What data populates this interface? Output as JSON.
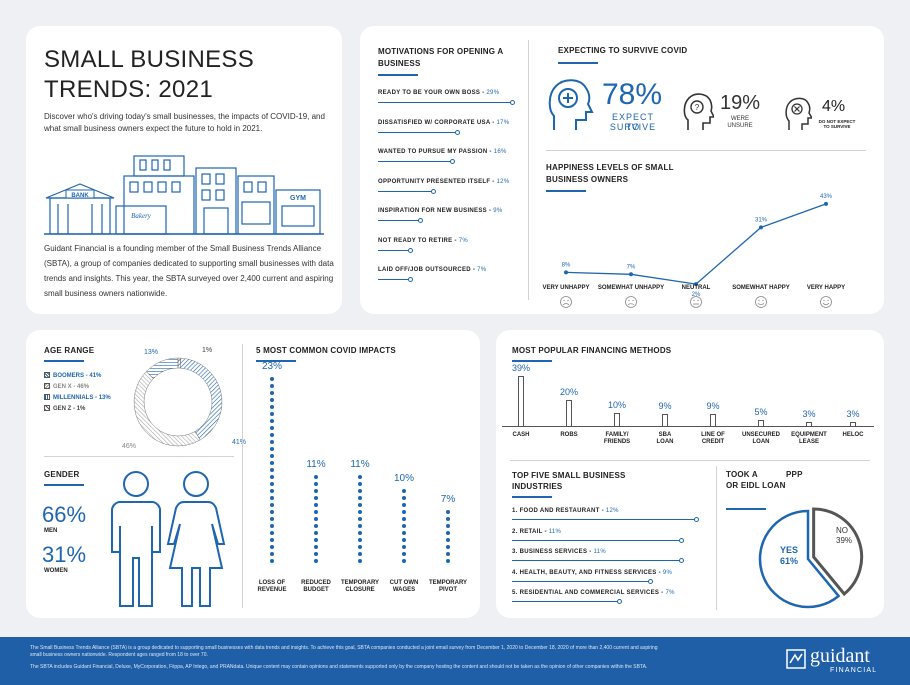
{
  "intro": {
    "title_line1": "SMALL BUSINESS",
    "title_line2": "TRENDS: 2021",
    "subtitle": "Discover who's driving today's small businesses, the impacts of COVID-19, and what small business owners expect the future to hold in 2021.",
    "signs": {
      "bank": "BANK",
      "bakery": "Bakery",
      "gym": "GYM"
    },
    "body": "Guidant Financial is a founding member of the Small Business Trends Alliance (SBTA), a group of companies dedicated to supporting small businesses with data trends and insights. This year, the SBTA surveyed  over 2,400 current and aspiring small business owners nationwide."
  },
  "motivations": {
    "title": "MOTIVATIONS FOR OPENING  A BUSINESS",
    "items": [
      {
        "label": "READY TO BE YOUR OWN BOSS",
        "pct": "29%",
        "value": 29
      },
      {
        "label": "DISSATISFIED W/ CORPORATE USA",
        "pct": "17%",
        "value": 17
      },
      {
        "label": "WANTED TO PURSUE MY PASSION",
        "pct": "16%",
        "value": 16
      },
      {
        "label": "OPPORTUNITY PRESENTED ITSELF",
        "pct": "12%",
        "value": 12
      },
      {
        "label": "INSPIRATION FOR NEW BUSINESS",
        "pct": "9%",
        "value": 9
      },
      {
        "label": "NOT READY TO RETIRE",
        "pct": "7%",
        "value": 7
      },
      {
        "label": "LAID OFF/JOB OUTSOURCED",
        "pct": "7%",
        "value": 7
      }
    ]
  },
  "survive": {
    "title": "EXPECTING TO SURVIVE COVID",
    "expect_pct": "78%",
    "expect_label1": "EXPECT TO",
    "expect_label2": "SURVIVE",
    "unsure_pct": "19%",
    "unsure_label1": "WERE",
    "unsure_label2": "UNSURE",
    "not_pct": "4%",
    "not_label1": "DO NOT EXPECT",
    "not_label2": "TO SURVIVE"
  },
  "happiness": {
    "title": "HAPPINESS LEVELS OF SMALL BUSINESS OWNERS",
    "chart_data": {
      "type": "line",
      "categories": [
        "VERY UNHAPPY",
        "SOMEWHAT UNHAPPY",
        "NEUTRAL",
        "SOMEWHAT HAPPY",
        "VERY HAPPY"
      ],
      "values": [
        8,
        7,
        2,
        31,
        43
      ],
      "labels": [
        "8%",
        "7%",
        "2%",
        "31%",
        "43%"
      ],
      "ylim": [
        0,
        45
      ],
      "color": "#1f66b0"
    }
  },
  "age": {
    "title": "AGE RANGE",
    "legend": [
      {
        "label": "BOOMERS",
        "pct": "41%"
      },
      {
        "label": "GEN X",
        "pct": "46%"
      },
      {
        "label": "MILLENNIALS",
        "pct": "13%"
      },
      {
        "label": "GEN Z",
        "pct": "1%"
      }
    ],
    "chart_data": {
      "type": "pie",
      "categories": [
        "BOOMERS",
        "GEN X",
        "MILLENNIALS",
        "GEN Z"
      ],
      "values": [
        41,
        46,
        13,
        1
      ],
      "labels": [
        "41%",
        "46%",
        "13%",
        "1%"
      ]
    }
  },
  "gender": {
    "title": "GENDER",
    "men_pct": "66%",
    "men_label": "MEN",
    "women_pct": "31%",
    "women_label": "WOMEN"
  },
  "impacts": {
    "title": "5 MOST COMMON COVID IMPACTS",
    "chart_data": {
      "type": "bar",
      "categories": [
        "LOSS OF REVENUE",
        "REDUCED BUDGET",
        "TEMPORARY CLOSURE",
        "CUT OWN WAGES",
        "TEMPORARY PIVOT"
      ],
      "cat_line1": [
        "LOSS OF",
        "REDUCED",
        "TEMPORARY",
        "CUT OWN",
        "TEMPORARY"
      ],
      "cat_line2": [
        "REVENUE",
        "BUDGET",
        "CLOSURE",
        "WAGES",
        "PIVOT"
      ],
      "values": [
        23,
        11,
        11,
        10,
        7
      ],
      "labels": [
        "23%",
        "11%",
        "11%",
        "10%",
        "7%"
      ]
    }
  },
  "financing": {
    "title": "MOST POPULAR FINANCING METHODS",
    "chart_data": {
      "type": "bar",
      "categories": [
        "CASH",
        "ROBS",
        "FAMILY/ FRIENDS",
        "SBA LOAN",
        "LINE OF CREDIT",
        "UNSECURED LOAN",
        "EQUIPMENT LEASE",
        "HELOC"
      ],
      "cat_line1": [
        "CASH",
        "ROBS",
        "FAMILY/",
        "SBA",
        "LINE OF",
        "UNSECURED",
        "EQUIPMENT",
        "HELOC"
      ],
      "cat_line2": [
        "",
        "",
        "FRIENDS",
        "LOAN",
        "CREDIT",
        "LOAN",
        "LEASE",
        ""
      ],
      "values": [
        39,
        20,
        10,
        9,
        9,
        5,
        3,
        3
      ],
      "labels": [
        "39%",
        "20%",
        "10%",
        "9%",
        "9%",
        "5%",
        "3%",
        "3%"
      ]
    }
  },
  "industries": {
    "title": "TOP FIVE SMALL BUSINESS INDUSTRIES",
    "items": [
      {
        "label": "1. FOOD AND RESTAURANT",
        "pct": "12%",
        "value": 12
      },
      {
        "label": "2. RETAIL",
        "pct": "11%",
        "value": 11
      },
      {
        "label": "3. BUSINESS SERVICES",
        "pct": "11%",
        "value": 11
      },
      {
        "label": "4. HEALTH, BEAUTY, AND FITNESS SERVICES",
        "pct": "9%",
        "value": 9
      },
      {
        "label": "5. RESIDENTIAL AND COMMERCIAL SERVICES",
        "pct": "7%",
        "value": 7
      }
    ]
  },
  "ppp": {
    "title_line1": "TOOK A",
    "title_ppp": "PPP",
    "title_line2": "OR EIDL LOAN",
    "yes_label": "YES",
    "yes_pct": "61%",
    "no_label": "NO",
    "no_pct": "39%",
    "chart_data": {
      "type": "pie",
      "categories": [
        "YES",
        "NO"
      ],
      "values": [
        61,
        39
      ]
    }
  },
  "footer": {
    "line1": "The Small Business Trends Alliance (SBTA) is a group dedicated to supporting small businesses with data trends and insights. To achieve this goal, SBTA companies conducted a joint email survey from December 1, 2020 to December 18, 2020 of more than 2,400 current and aspiring small business owners nationwide. Respondent ages ranged from 18 to over 70.",
    "line2": "The SBTA includes Guidant Financial, Deluxe, MyCorporation, Fiippa, AP Intego, and PRANdata. Unique content may contain opinions and statements supported only by the company hosting the content and should not be taken as the opinion of other companies within the SBTA.",
    "logo_main": "guidant",
    "logo_sub": "FINANCIAL"
  }
}
